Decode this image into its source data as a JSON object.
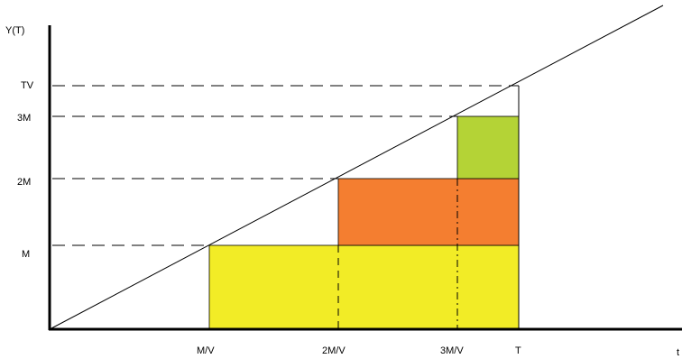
{
  "axes": {
    "y_label": "Y(T)",
    "x_label": "t"
  },
  "y_ticks": [
    "TV",
    "3M",
    "2M",
    "M"
  ],
  "x_ticks": [
    "M/V",
    "2M/V",
    "3M/V",
    "T"
  ],
  "colors": {
    "yellow": "#f2ec26",
    "orange": "#f47e30",
    "green": "#b4d336",
    "line": "#000000"
  }
}
